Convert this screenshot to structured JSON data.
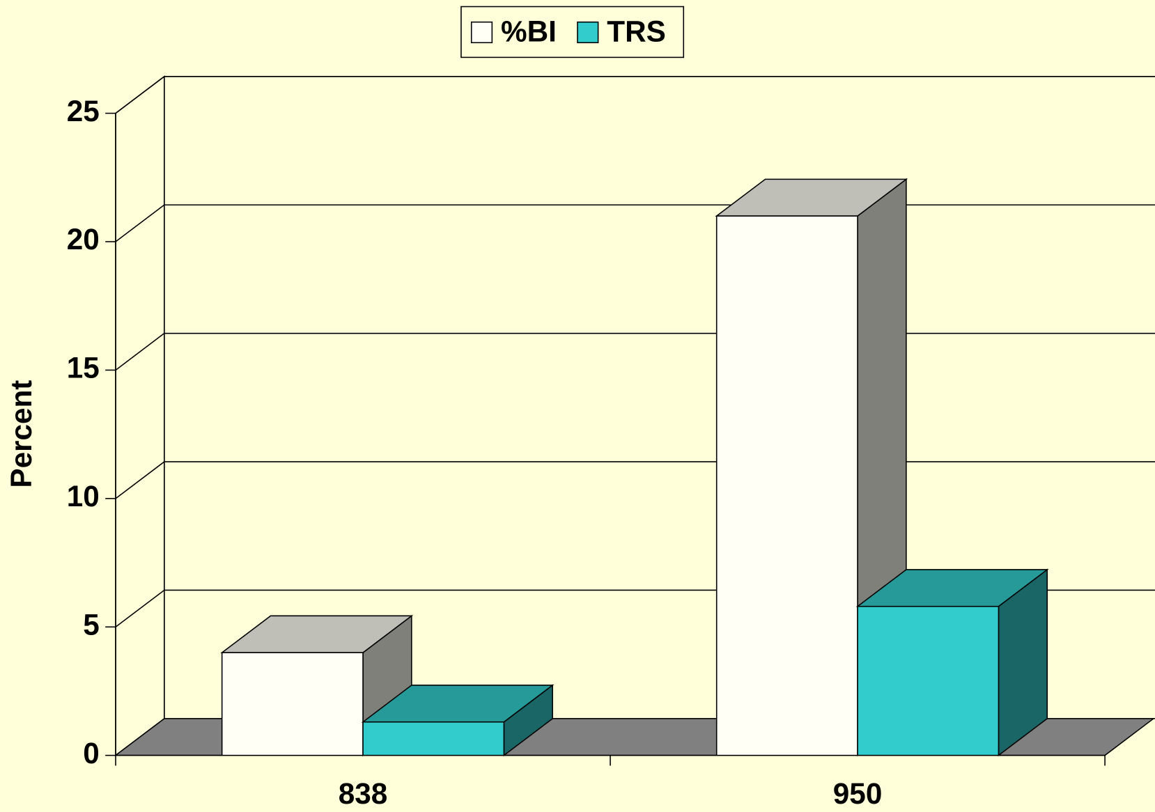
{
  "chart_data": {
    "type": "bar3d",
    "y_label": "Percent",
    "categories": [
      "838",
      "950"
    ],
    "series": [
      {
        "name": "%BI",
        "color": "#fffff5",
        "values": [
          4,
          21
        ]
      },
      {
        "name": "TRS",
        "color": "#33cccc",
        "values": [
          1.3,
          5.8
        ]
      }
    ],
    "ylim": [
      0,
      25
    ],
    "yticks": [
      0,
      5,
      10,
      15,
      20,
      25
    ],
    "grid": true,
    "legend": "top"
  }
}
